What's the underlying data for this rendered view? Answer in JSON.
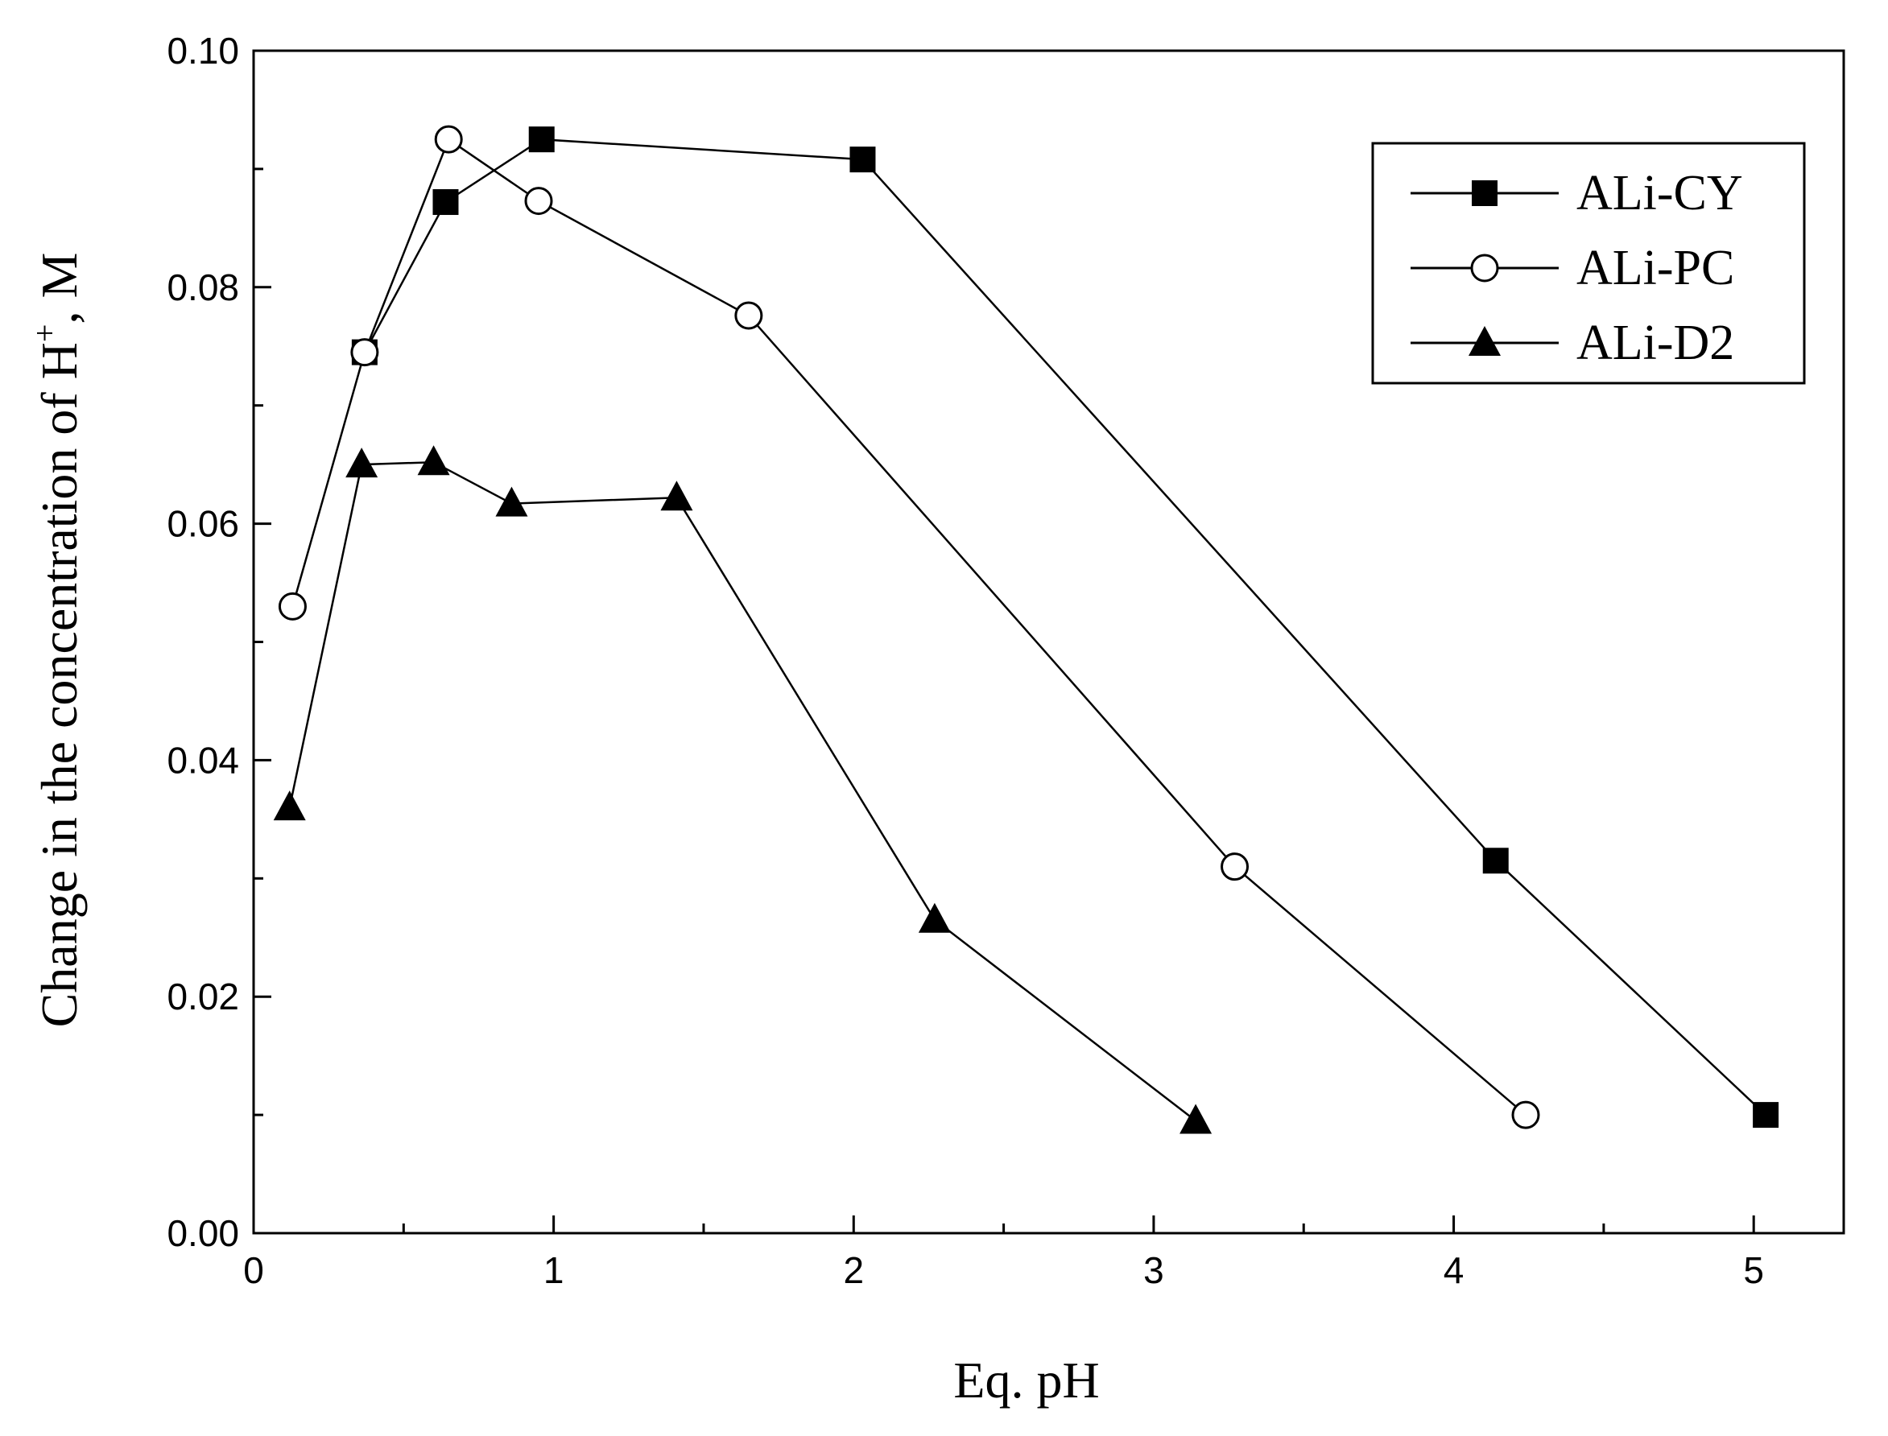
{
  "chart_data": {
    "type": "line",
    "xlabel": "Eq. pH",
    "ylabel": "Change in the concentration of H",
    "ylabel_sup": "+",
    "ylabel_suffix": ", M",
    "xlim": [
      0,
      5.3
    ],
    "ylim": [
      0,
      0.1
    ],
    "x_ticks": [
      0,
      1,
      2,
      3,
      4,
      5
    ],
    "x_tick_labels": [
      "0",
      "1",
      "2",
      "3",
      "4",
      "5"
    ],
    "y_ticks": [
      0,
      0.02,
      0.04,
      0.06,
      0.08,
      0.1
    ],
    "y_tick_labels": [
      "0.00",
      "0.02",
      "0.04",
      "0.06",
      "0.08",
      "0.10"
    ],
    "grid": false,
    "legend_position": "top-right",
    "series": [
      {
        "name": "ALi-CY",
        "marker": "square-filled",
        "points": [
          [
            0.37,
            0.0745
          ],
          [
            0.64,
            0.0872
          ],
          [
            0.96,
            0.0925
          ],
          [
            2.03,
            0.0908
          ],
          [
            4.14,
            0.0315
          ],
          [
            5.04,
            0.01
          ]
        ]
      },
      {
        "name": "ALi-PC",
        "marker": "circle-open",
        "points": [
          [
            0.13,
            0.053
          ],
          [
            0.37,
            0.0745
          ],
          [
            0.65,
            0.0925
          ],
          [
            0.95,
            0.0873
          ],
          [
            1.65,
            0.0776
          ],
          [
            3.27,
            0.031
          ],
          [
            4.24,
            0.01
          ]
        ]
      },
      {
        "name": "ALi-D2",
        "marker": "triangle-filled",
        "points": [
          [
            0.12,
            0.036
          ],
          [
            0.36,
            0.065
          ],
          [
            0.6,
            0.0652
          ],
          [
            0.86,
            0.0617
          ],
          [
            1.41,
            0.0622
          ],
          [
            2.27,
            0.0265
          ],
          [
            3.14,
            0.0095
          ]
        ]
      }
    ]
  }
}
